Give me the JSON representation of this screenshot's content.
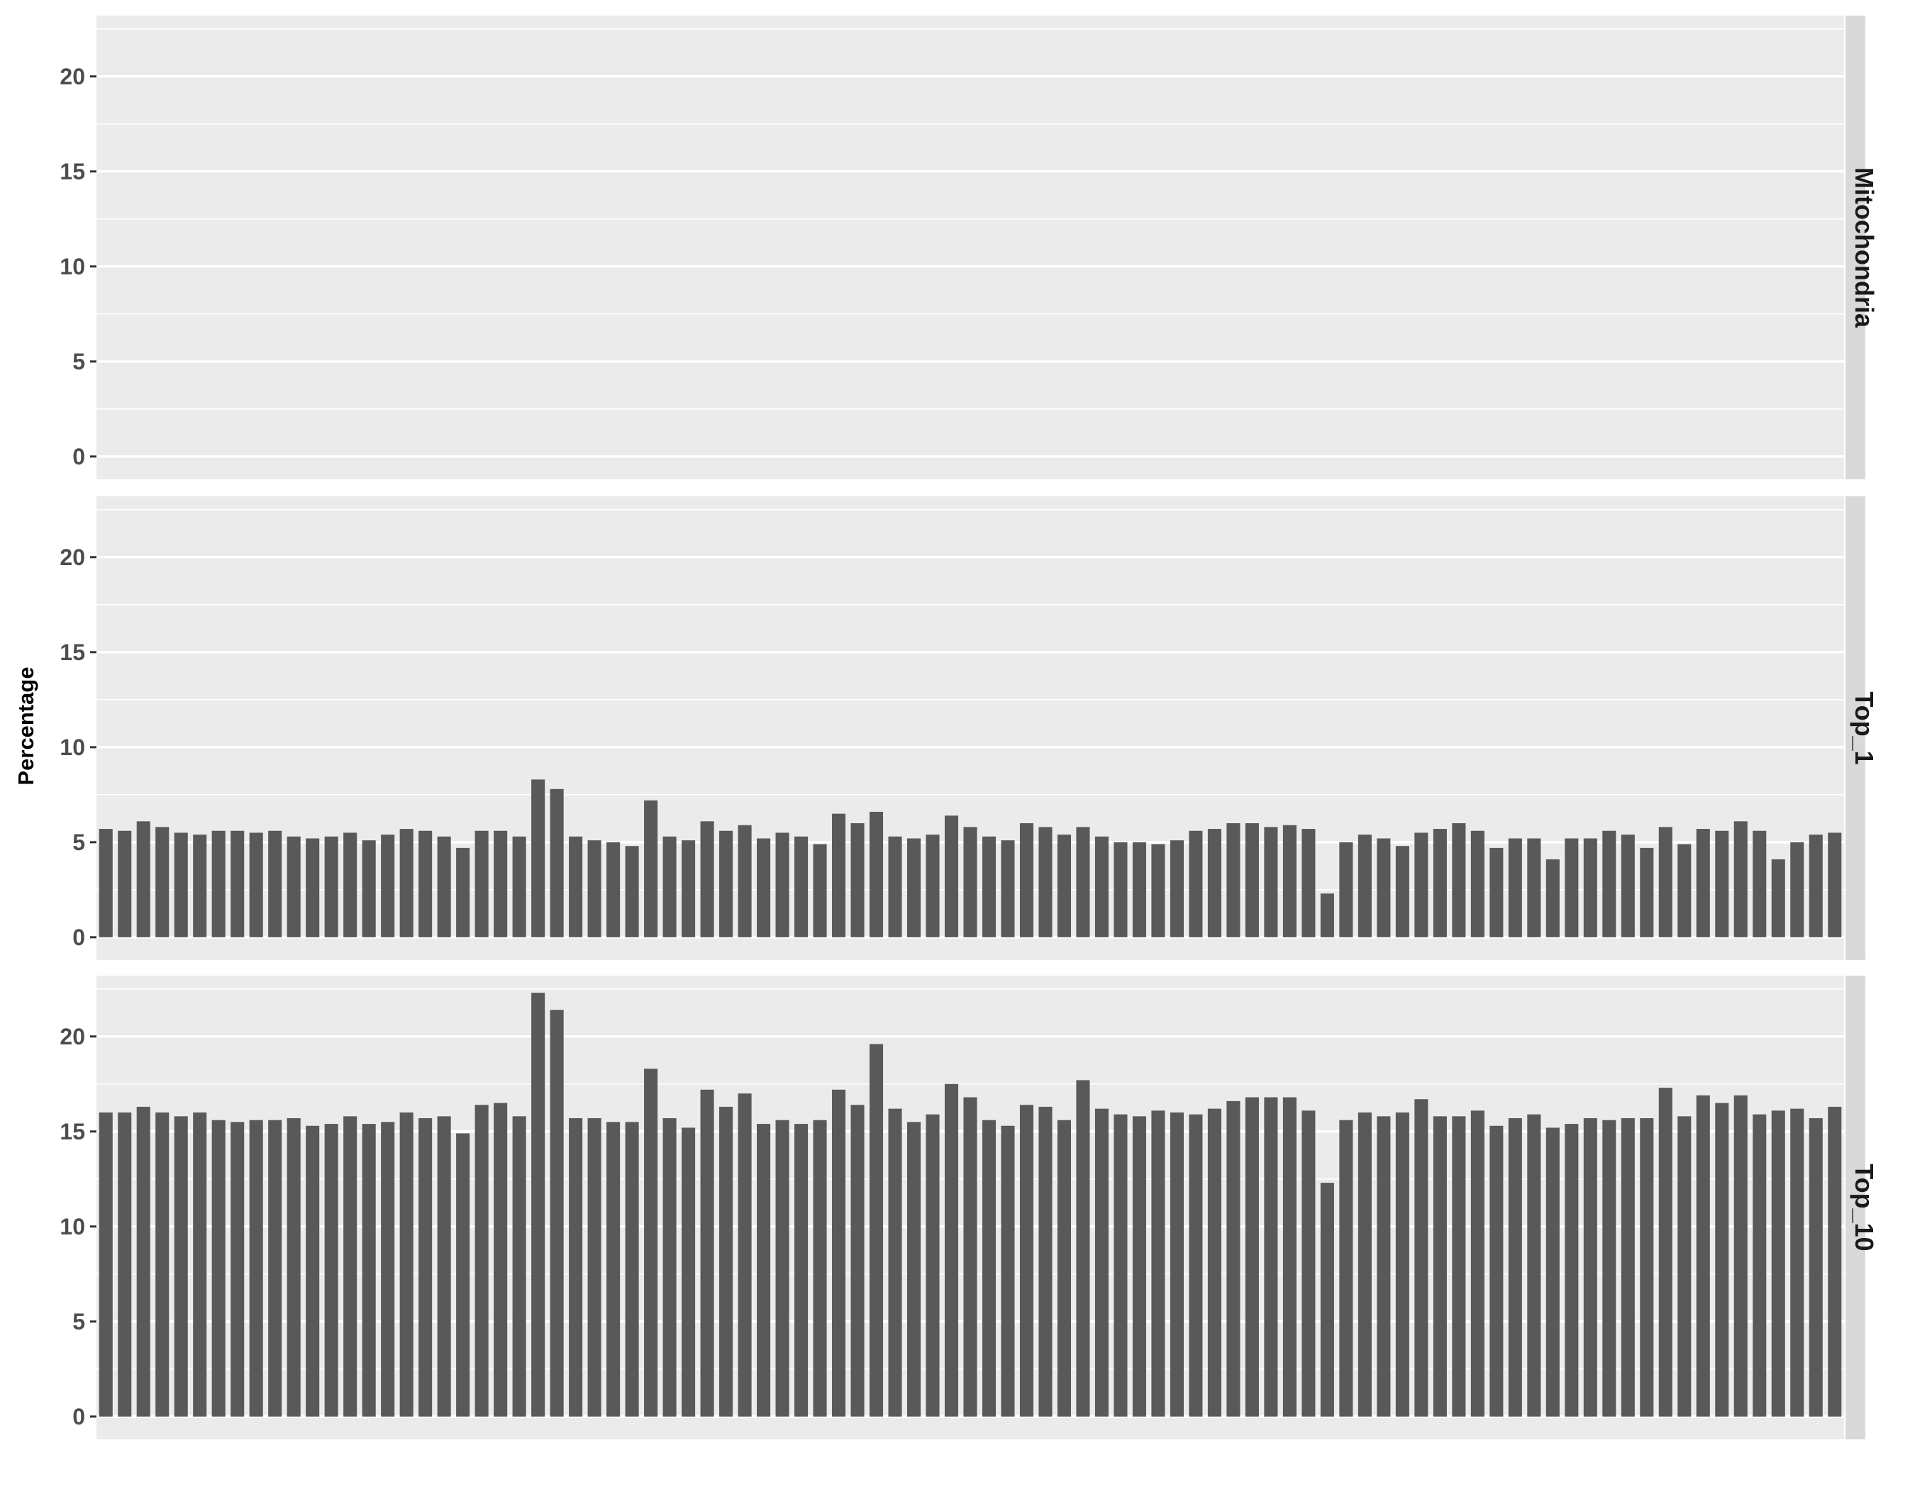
{
  "chart_data": {
    "type": "bar",
    "layout": "facet_grid_rows",
    "ylabel": "Percentage",
    "xlabel": "",
    "ylim": [
      -1.2,
      23.2
    ],
    "yticks": [
      0,
      5,
      10,
      15,
      20
    ],
    "grid": true,
    "x_tick_labels_shown": false,
    "colors": {
      "bar": "#595959",
      "panel_bg": "#ebebeb",
      "grid": "#ffffff",
      "strip_bg": "#d9d9d9",
      "tick_text": "#4d4d4d",
      "strip_text": "#1a1a1a"
    },
    "panels": [
      {
        "strip": "Mitochondria",
        "values": [
          0,
          0,
          0,
          0,
          0,
          0,
          0,
          0,
          0,
          0,
          0,
          0,
          0,
          0,
          0,
          0,
          0,
          0,
          0,
          0,
          0,
          0,
          0,
          0,
          0,
          0,
          0,
          0,
          0,
          0,
          0,
          0,
          0,
          0,
          0,
          0,
          0,
          0,
          0,
          0,
          0,
          0,
          0,
          0,
          0,
          0,
          0,
          0,
          0,
          0,
          0,
          0,
          0,
          0,
          0,
          0,
          0,
          0,
          0,
          0,
          0,
          0,
          0,
          0,
          0,
          0,
          0,
          0,
          0,
          0,
          0,
          0,
          0,
          0,
          0,
          0,
          0,
          0,
          0,
          0,
          0,
          0,
          0,
          0,
          0,
          0,
          0,
          0,
          0,
          0,
          0,
          0,
          0,
          0
        ]
      },
      {
        "strip": "Top_1",
        "values": [
          5.7,
          5.6,
          6.1,
          5.8,
          5.5,
          5.4,
          5.6,
          5.6,
          5.5,
          5.6,
          5.3,
          5.2,
          5.3,
          5.5,
          5.1,
          5.4,
          5.7,
          5.6,
          5.3,
          4.7,
          5.6,
          5.6,
          5.3,
          8.3,
          7.8,
          5.3,
          5.1,
          5.0,
          4.8,
          7.2,
          5.3,
          5.1,
          6.1,
          5.6,
          5.9,
          5.2,
          5.5,
          5.3,
          4.9,
          6.5,
          6.0,
          6.6,
          5.3,
          5.2,
          5.4,
          6.4,
          5.8,
          5.3,
          5.1,
          6.0,
          5.8,
          5.4,
          5.8,
          5.3,
          5.0,
          5.0,
          4.9,
          5.1,
          5.6,
          5.7,
          6.0,
          6.0,
          5.8,
          5.9,
          5.7,
          2.3,
          5.0,
          5.4,
          5.2,
          4.8,
          5.5,
          5.7,
          6.0,
          5.6,
          4.7,
          5.2,
          5.2,
          4.1,
          5.2,
          5.2,
          5.6,
          5.4,
          4.7,
          5.8,
          4.9,
          5.7,
          5.6,
          6.1,
          5.6,
          4.1,
          5.0,
          5.4,
          5.5
        ]
      },
      {
        "strip": "Top_10",
        "values": [
          16.0,
          16.0,
          16.3,
          16.0,
          15.8,
          16.0,
          15.6,
          15.5,
          15.6,
          15.6,
          15.7,
          15.3,
          15.4,
          15.8,
          15.4,
          15.5,
          16.0,
          15.7,
          15.8,
          14.9,
          16.4,
          16.5,
          15.8,
          22.3,
          21.4,
          15.7,
          15.7,
          15.5,
          15.5,
          18.3,
          15.7,
          15.2,
          17.2,
          16.3,
          17.0,
          15.4,
          15.6,
          15.4,
          15.6,
          17.2,
          16.4,
          19.6,
          16.2,
          15.5,
          15.9,
          17.5,
          16.8,
          15.6,
          15.3,
          16.4,
          16.3,
          15.6,
          17.7,
          16.2,
          15.9,
          15.8,
          16.1,
          16.0,
          15.9,
          16.2,
          16.6,
          16.8,
          16.8,
          16.8,
          16.1,
          12.3,
          15.6,
          16.0,
          15.8,
          16.0,
          16.7,
          15.8,
          15.8,
          16.1,
          15.3,
          15.7,
          15.9,
          15.2,
          15.4,
          15.7,
          15.6,
          15.7,
          15.7,
          17.3,
          15.8,
          16.9,
          16.5,
          16.9,
          15.9,
          16.1,
          16.2,
          15.7,
          16.3
        ]
      }
    ]
  }
}
